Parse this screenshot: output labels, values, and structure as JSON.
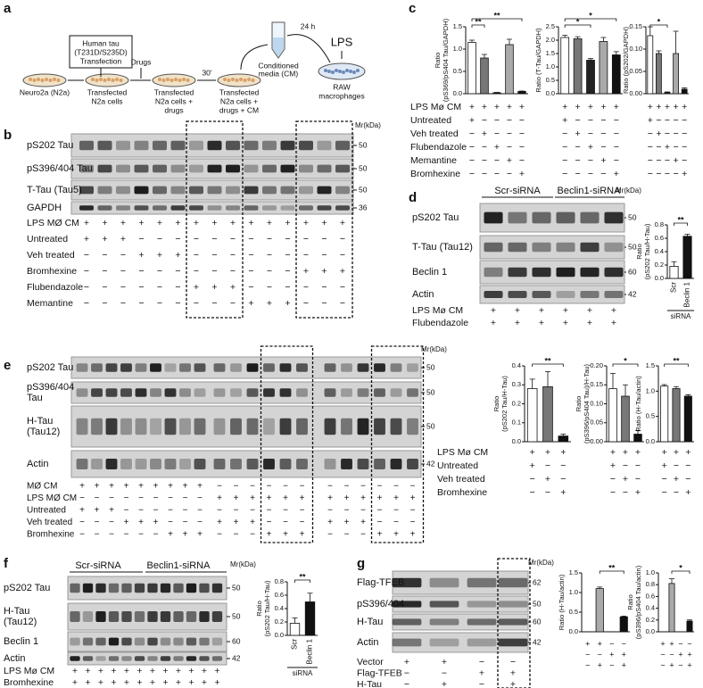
{
  "a": {
    "letter": "a",
    "tau_box": [
      "Human tau",
      "(T231D/S235D)",
      "Transfection"
    ],
    "drugs": "Drugs",
    "time1": "30'",
    "time2": "24 h",
    "cm": [
      "Conditioned",
      "media (CM)"
    ],
    "lps": "LPS",
    "raw": [
      "RAW",
      "macrophages"
    ],
    "dishes": [
      [
        "Neuro2a (N2a)"
      ],
      [
        "Transfected",
        "N2a cells"
      ],
      [
        "Transfected",
        "N2a cells +",
        "drugs"
      ],
      [
        "Transfected",
        "N2a cells +",
        "drugs + CM"
      ]
    ]
  },
  "b": {
    "letter": "b",
    "mr": "Mr(kDa)",
    "rows": [
      {
        "name": [
          "pS202 Tau"
        ],
        "kda": 50
      },
      {
        "name": [
          "pS396/404 Tau"
        ],
        "kda": 50
      },
      {
        "name": [
          "T-Tau (Tau5)"
        ],
        "kda": 50
      },
      {
        "name": [
          "GAPDH"
        ],
        "kda": 36
      }
    ],
    "treatments": [
      {
        "name": "LPS MØ CM",
        "signs": [
          "+",
          "+",
          "+",
          "+",
          "+",
          "+",
          "+",
          "+",
          "+",
          "+",
          "+",
          "+",
          "+",
          "+",
          "+"
        ]
      },
      {
        "name": "Untreated",
        "signs": [
          "+",
          "+",
          "+",
          "−",
          "−",
          "−",
          "−",
          "−",
          "−",
          "−",
          "−",
          "−",
          "−",
          "−",
          "−"
        ]
      },
      {
        "name": "Veh treated",
        "signs": [
          "−",
          "−",
          "−",
          "+",
          "+",
          "+",
          "−",
          "−",
          "−",
          "−",
          "−",
          "−",
          "−",
          "−",
          "−"
        ]
      },
      {
        "name": "Bromhexine",
        "signs": [
          "−",
          "−",
          "−",
          "−",
          "−",
          "−",
          "−",
          "−",
          "−",
          "−",
          "−",
          "−",
          "+",
          "+",
          "+"
        ]
      },
      {
        "name": "Flubendazole",
        "signs": [
          "−",
          "−",
          "−",
          "−",
          "−",
          "−",
          "+",
          "+",
          "+",
          "−",
          "−",
          "−",
          "−",
          "−",
          "−"
        ]
      },
      {
        "name": "Memantine",
        "signs": [
          "−",
          "−",
          "−",
          "−",
          "−",
          "−",
          "−",
          "−",
          "−",
          "+",
          "+",
          "+",
          "−",
          "−",
          "−"
        ]
      }
    ]
  },
  "c": {
    "letter": "c",
    "charts": [
      {
        "type": "bar",
        "ylabel": [
          "Ratio",
          "(pS369/pS404 Tau/GAPDH)"
        ],
        "ylim": [
          0,
          1.5
        ],
        "yticks": [
          {
            "value": 0,
            "label": "0.0"
          },
          0.5,
          {
            "value": 1,
            "label": "1.0"
          },
          1.5
        ],
        "values": [
          1.15,
          0.8,
          0.02,
          1.1,
          0.05
        ],
        "errors": [
          0.05,
          0.08,
          0.01,
          0.12,
          0.01
        ],
        "colors": [
          "#ffffff",
          "#777777",
          "#222222",
          "#aaaaaa",
          "#111111"
        ],
        "sig": [
          "**",
          "**"
        ]
      },
      {
        "type": "bar",
        "ylabel": [
          "Ratio (T-Tau/GAPDH)"
        ],
        "ylim": [
          0,
          2.5
        ],
        "yticks": [
          {
            "value": 0,
            "label": "0.0"
          },
          0.5,
          {
            "value": 1,
            "label": "1.0"
          },
          1.5,
          {
            "value": 2,
            "label": "2.0"
          },
          2.5
        ],
        "values": [
          2.1,
          2.05,
          1.25,
          1.95,
          1.45
        ],
        "errors": [
          0.08,
          0.08,
          0.06,
          0.15,
          0.12
        ],
        "colors": [
          "#ffffff",
          "#777777",
          "#222222",
          "#aaaaaa",
          "#111111"
        ],
        "sig": [
          "*",
          "*"
        ]
      },
      {
        "type": "bar",
        "ylabel": [
          "Ratio (pS202/GAPDH)"
        ],
        "ylim": [
          0,
          0.15
        ],
        "yticks": [
          {
            "value": 0,
            "label": "0.00"
          },
          0.05,
          {
            "value": 0.1,
            "label": "0.10"
          },
          0.15
        ],
        "values": [
          0.13,
          0.09,
          0.003,
          0.09,
          0.01
        ],
        "errors": [
          0.02,
          0.006,
          0.001,
          0.05,
          0.003
        ],
        "colors": [
          "#ffffff",
          "#777777",
          "#222222",
          "#aaaaaa",
          "#111111"
        ],
        "sig": [
          "*"
        ]
      }
    ],
    "treatments": [
      {
        "name": "LPS Mø CM",
        "signs": [
          "+",
          "+",
          "+",
          "+",
          "+"
        ]
      },
      {
        "name": "Untreated",
        "signs": [
          "+",
          "−",
          "−",
          "−",
          "−"
        ]
      },
      {
        "name": "Veh treated",
        "signs": [
          "−",
          "+",
          "−",
          "−",
          "−"
        ]
      },
      {
        "name": "Flubendazole",
        "signs": [
          "−",
          "−",
          "+",
          "−",
          "−"
        ]
      },
      {
        "name": "Memantine",
        "signs": [
          "−",
          "−",
          "−",
          "+",
          "−"
        ]
      },
      {
        "name": "Bromhexine",
        "signs": [
          "−",
          "−",
          "−",
          "−",
          "+"
        ]
      }
    ]
  },
  "d": {
    "letter": "d",
    "groups": [
      "Scr-siRNA",
      "Beclin1-siRNA"
    ],
    "mr": "Mr(kDa)",
    "rows": [
      {
        "name": [
          "pS202 Tau"
        ],
        "kda": 50
      },
      {
        "name": [
          "T-Tau (Tau12)"
        ],
        "kda": 50
      },
      {
        "name": [
          "Beclin 1"
        ],
        "kda": 60
      },
      {
        "name": [
          "Actin"
        ],
        "kda": 42
      }
    ],
    "treatments": [
      {
        "name": "LPS Mø CM",
        "signs": [
          "+",
          "+",
          "+",
          "+",
          "+",
          "+"
        ]
      },
      {
        "name": "Flubendazole",
        "signs": [
          "+",
          "+",
          "+",
          "+",
          "+",
          "+"
        ]
      }
    ],
    "chart": {
      "type": "bar",
      "ylabel": [
        "Ratio",
        "(pS202 Tau/H-Tau)"
      ],
      "ylim": [
        0,
        0.8
      ],
      "yticks": [
        {
          "value": 0,
          "label": "0.0"
        },
        0.2,
        0.4,
        0.6,
        0.8
      ],
      "categories": [
        "Scr",
        "Beclin 1"
      ],
      "xlabel": "siRNA",
      "values": [
        0.18,
        0.63
      ],
      "errors": [
        0.07,
        0.03
      ],
      "colors": [
        "#ffffff",
        "#111111"
      ],
      "sig": [
        "**"
      ]
    }
  },
  "e": {
    "letter": "e",
    "mr": "Mr(kDa)",
    "rows": [
      {
        "name": [
          "pS202 Tau"
        ],
        "kda": 50
      },
      {
        "name": [
          "pS396/404",
          "Tau"
        ],
        "kda": 50
      },
      {
        "name": [
          "H-Tau",
          "(Tau12)"
        ],
        "kda": 50
      },
      {
        "name": [
          "Actin"
        ],
        "kda": 42
      }
    ],
    "treatments": [
      {
        "name": "MØ CM",
        "signs": [
          "+",
          "+",
          "+",
          "+",
          "+",
          "+",
          "+",
          "+",
          "+",
          "−",
          "−",
          "−",
          "−",
          "−",
          "−",
          "−",
          "−",
          "−",
          "−",
          "−",
          "−"
        ]
      },
      {
        "name": "LPS MØ CM",
        "signs": [
          "−",
          "−",
          "−",
          "−",
          "−",
          "−",
          "−",
          "−",
          "−",
          "+",
          "+",
          "+",
          "+",
          "+",
          "+",
          "+",
          "+",
          "+",
          "+",
          "+",
          "+"
        ]
      },
      {
        "name": "Untreated",
        "signs": [
          "+",
          "+",
          "+",
          "−",
          "−",
          "−",
          "−",
          "−",
          "−",
          "−",
          "−",
          "−",
          "−",
          "−",
          "−",
          "−",
          "−",
          "−",
          "−",
          "−",
          "−"
        ]
      },
      {
        "name": "Veh treated",
        "signs": [
          "−",
          "−",
          "−",
          "+",
          "+",
          "+",
          "−",
          "−",
          "−",
          "+",
          "+",
          "+",
          "−",
          "−",
          "−",
          "+",
          "+",
          "+",
          "−",
          "−",
          "−"
        ]
      },
      {
        "name": "Bromhexine",
        "signs": [
          "−",
          "−",
          "−",
          "−",
          "−",
          "−",
          "+",
          "+",
          "+",
          "−",
          "−",
          "−",
          "+",
          "+",
          "+",
          "−",
          "−",
          "−",
          "+",
          "+",
          "+"
        ]
      }
    ],
    "charts": [
      {
        "type": "bar",
        "ylabel": [
          "Ratio",
          "(pS202 Tau/H-Tau)"
        ],
        "ylim": [
          0,
          0.4
        ],
        "yticks": [
          {
            "value": 0,
            "label": "0.0"
          },
          0.1,
          0.2,
          0.3,
          0.4
        ],
        "values": [
          0.28,
          0.29,
          0.03
        ],
        "errors": [
          0.05,
          0.08,
          0.01
        ],
        "colors": [
          "#ffffff",
          "#777777",
          "#111111"
        ],
        "sig": [
          "**"
        ]
      },
      {
        "type": "bar",
        "ylabel": [
          "Ratio",
          "(pS396/pS404 Tau)/H-Tau)"
        ],
        "ylim": [
          0,
          0.2
        ],
        "yticks": [
          {
            "value": 0,
            "label": "0.00"
          },
          0.05,
          {
            "value": 0.1,
            "label": "0.10"
          },
          0.15,
          {
            "value": 0.2,
            "label": "0.20"
          }
        ],
        "values": [
          0.14,
          0.12,
          0.02
        ],
        "errors": [
          0.04,
          0.03,
          0.01
        ],
        "colors": [
          "#ffffff",
          "#777777",
          "#111111"
        ],
        "sig": [
          "*"
        ]
      },
      {
        "type": "bar",
        "ylabel": [
          "Ratio (H-Tau/actin)"
        ],
        "ylim": [
          0,
          1.5
        ],
        "yticks": [
          {
            "value": 0,
            "label": "0.0"
          },
          0.5,
          {
            "value": 1,
            "label": "1.0"
          },
          1.5
        ],
        "values": [
          1.1,
          1.05,
          0.9
        ],
        "errors": [
          0.03,
          0.04,
          0.03
        ],
        "colors": [
          "#ffffff",
          "#777777",
          "#111111"
        ],
        "sig": [
          "**"
        ]
      }
    ],
    "chart_treatments": [
      {
        "name": "LPS Mø CM",
        "signs": [
          "+",
          "+",
          "+"
        ]
      },
      {
        "name": "Untreated",
        "signs": [
          "+",
          "−",
          "−"
        ]
      },
      {
        "name": "Veh treated",
        "signs": [
          "−",
          "+",
          "−"
        ]
      },
      {
        "name": "Bromhexine",
        "signs": [
          "−",
          "−",
          "+"
        ]
      }
    ]
  },
  "f": {
    "letter": "f",
    "groups": [
      "Scr-siRNA",
      "Beclin1-siRNA"
    ],
    "mr": "Mr(kDa)",
    "rows": [
      {
        "name": [
          "pS202 Tau"
        ],
        "kda": 50
      },
      {
        "name": [
          "H-Tau",
          "(Tau12)"
        ],
        "kda": 50
      },
      {
        "name": [
          "Beclin 1"
        ],
        "kda": 60
      },
      {
        "name": [
          "Actin"
        ],
        "kda": 42
      }
    ],
    "treatments": [
      {
        "name": "LPS Mø CM",
        "signs": [
          "+",
          "+",
          "+",
          "+",
          "+",
          "+",
          "+",
          "+",
          "+",
          "+",
          "+",
          "+"
        ]
      },
      {
        "name": "Bromhexine",
        "signs": [
          "+",
          "+",
          "+",
          "+",
          "+",
          "+",
          "+",
          "+",
          "+",
          "+",
          "+",
          "+"
        ]
      }
    ],
    "chart": {
      "type": "bar",
      "ylabel": [
        "Ratio",
        "(pS202 Tau/H-Tau)"
      ],
      "ylim": [
        0,
        0.8
      ],
      "yticks": [
        {
          "value": 0,
          "label": "0.0"
        },
        0.2,
        0.4,
        0.6,
        0.8
      ],
      "categories": [
        "Scr",
        "Beclin 1"
      ],
      "xlabel": "siRNA",
      "values": [
        0.18,
        0.5
      ],
      "errors": [
        0.08,
        0.13
      ],
      "colors": [
        "#ffffff",
        "#111111"
      ],
      "sig": [
        "**"
      ]
    }
  },
  "g": {
    "letter": "g",
    "mr": "Mr(kDa)",
    "rows": [
      {
        "name": [
          "Flag-TFEB"
        ],
        "kda": 62
      },
      {
        "name": [
          "pS396/404"
        ],
        "kda": 50
      },
      {
        "name": [
          "H-Tau"
        ],
        "kda": 60
      },
      {
        "name": [
          "Actin"
        ],
        "kda": 42
      }
    ],
    "treatments": [
      {
        "name": "Vector",
        "signs": [
          "+",
          "+",
          "−",
          "−"
        ]
      },
      {
        "name": "Flag-TFEB",
        "signs": [
          "−",
          "−",
          "+",
          "+"
        ]
      },
      {
        "name": "H-Tau",
        "signs": [
          "−",
          "+",
          "−",
          "+"
        ]
      }
    ],
    "charts": [
      {
        "type": "bar",
        "ylabel": [
          "Ratio (H-Tau/actin)"
        ],
        "ylim": [
          0,
          1.5
        ],
        "yticks": [
          {
            "value": 0,
            "label": "0.0"
          },
          0.5,
          {
            "value": 1,
            "label": "1.0"
          },
          1.5
        ],
        "values": [
          null,
          1.1,
          null,
          0.38
        ],
        "errors": [
          null,
          0.04,
          null,
          0.02
        ],
        "colors": [
          "#aaaaaa",
          "#aaaaaa",
          "#111111",
          "#111111"
        ],
        "sig": [
          "**"
        ]
      },
      {
        "type": "bar",
        "ylabel": [
          "Ratio",
          "(pS396/pS404 Tau/actin)"
        ],
        "ylim": [
          0,
          1
        ],
        "yticks": [
          {
            "value": 0,
            "label": "0.0"
          },
          0.2,
          0.4,
          0.6,
          0.8,
          {
            "value": 1,
            "label": "1.0"
          }
        ],
        "values": [
          null,
          0.82,
          null,
          0.18
        ],
        "errors": [
          null,
          0.08,
          null,
          0.02
        ],
        "colors": [
          "#aaaaaa",
          "#aaaaaa",
          "#111111",
          "#111111"
        ],
        "sig": [
          "*"
        ]
      }
    ]
  }
}
